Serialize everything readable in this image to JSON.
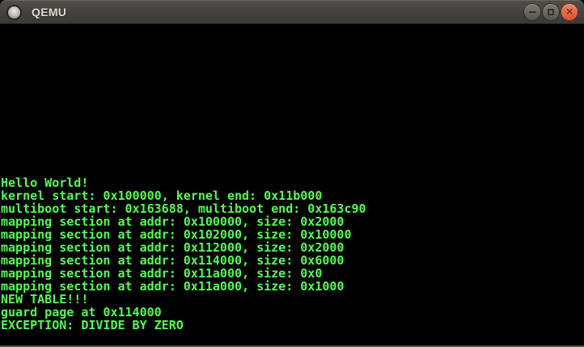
{
  "window": {
    "title": "QEMU",
    "icon": "qemu-window-icon",
    "controls": [
      {
        "name": "minimize-button",
        "icon": "minimize-icon"
      },
      {
        "name": "maximize-button",
        "icon": "maximize-icon"
      },
      {
        "name": "close-button",
        "icon": "close-icon",
        "glyph": "✕"
      }
    ]
  },
  "colors": {
    "titlebar_top": "#514f49",
    "titlebar_bottom": "#3a3935",
    "title_text": "#dfdbd2",
    "control_button_gray": "#6a675f",
    "control_button_close": "#e66b47",
    "terminal_background": "#000000",
    "terminal_text_green": "#54fc54"
  },
  "terminal": {
    "lines": [
      "Hello World!",
      "kernel start: 0x100000, kernel end: 0x11b000",
      "multiboot start: 0x163688, multiboot end: 0x163c90",
      "mapping section at addr: 0x100000, size: 0x2000",
      "mapping section at addr: 0x102000, size: 0x10000",
      "mapping section at addr: 0x112000, size: 0x2000",
      "mapping section at addr: 0x114000, size: 0x6000",
      "mapping section at addr: 0x11a000, size: 0x0",
      "mapping section at addr: 0x11a000, size: 0x1000",
      "NEW TABLE!!!",
      "guard page at 0x114000",
      "EXCEPTION: DIVIDE BY ZERO"
    ]
  }
}
